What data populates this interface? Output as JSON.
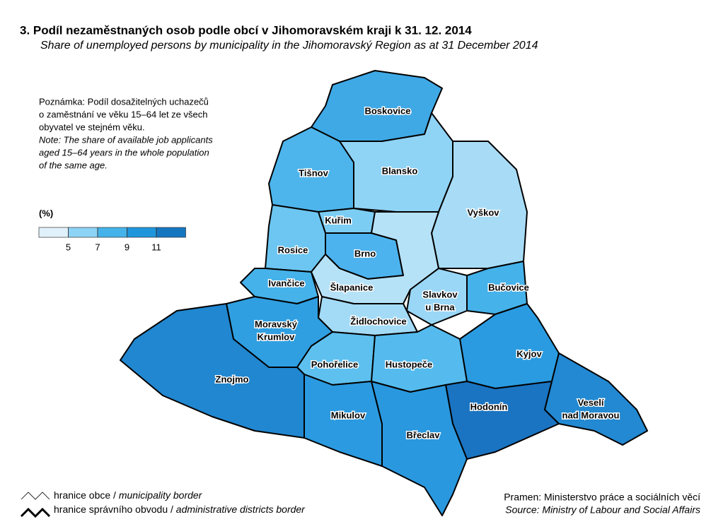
{
  "header": {
    "title": "3. Podíl nezaměstnaných osob podle obcí v Jihomoravském kraji k 31. 12. 2014",
    "subtitle": "Share of unemployed persons by municipality in the Jihomoravský Region as at 31 December 2014"
  },
  "note": {
    "cz": [
      "Poznámka: Podíl dosažitelných uchazečů",
      "o zaměstnání ve věku 15–64 let ze všech",
      "obyvatel ve stejném věku."
    ],
    "en": [
      "Note: The share of available job applicants",
      "aged 15–64 years in the whole population",
      "of the same age."
    ]
  },
  "legend": {
    "unit": "(%)",
    "ticks": [
      5,
      7,
      9,
      11
    ],
    "colors": [
      "#e1f1fb",
      "#8dd3f5",
      "#45b3ea",
      "#1f96dc",
      "#1577c0"
    ]
  },
  "districts": [
    {
      "label": [
        "Boskovice"
      ]
    },
    {
      "label": [
        "Blansko"
      ]
    },
    {
      "label": [
        "Tišnov"
      ]
    },
    {
      "label": [
        "Vyškov"
      ]
    },
    {
      "label": [
        "Kuřim"
      ]
    },
    {
      "label": [
        "Brno"
      ]
    },
    {
      "label": [
        "Rosice"
      ]
    },
    {
      "label": [
        "Ivančice"
      ]
    },
    {
      "label": [
        "Šlapanice"
      ]
    },
    {
      "label": [
        "Slavkov",
        "u Brna"
      ]
    },
    {
      "label": [
        "Bučovice"
      ]
    },
    {
      "label": [
        "Židlochovice"
      ]
    },
    {
      "label": [
        "Moravský",
        "Krumlov"
      ]
    },
    {
      "label": [
        "Kyjov"
      ]
    },
    {
      "label": [
        "Pohořelice"
      ]
    },
    {
      "label": [
        "Hustopeče"
      ]
    },
    {
      "label": [
        "Znojmo"
      ]
    },
    {
      "label": [
        "Hodonín"
      ]
    },
    {
      "label": [
        "Veselí",
        "nad Moravou"
      ]
    },
    {
      "label": [
        "Mikulov"
      ]
    },
    {
      "label": [
        "Břeclav"
      ]
    }
  ],
  "borders": [
    {
      "cz": "hranice obce /",
      "en": "municipality border"
    },
    {
      "cz": "hranice správního obvodu /",
      "en": "administrative districts border"
    }
  ],
  "source": {
    "cz": "Pramen: Ministerstvo práce a sociálních věcí",
    "en": "Source: Ministry of Labour and Social Affairs"
  }
}
